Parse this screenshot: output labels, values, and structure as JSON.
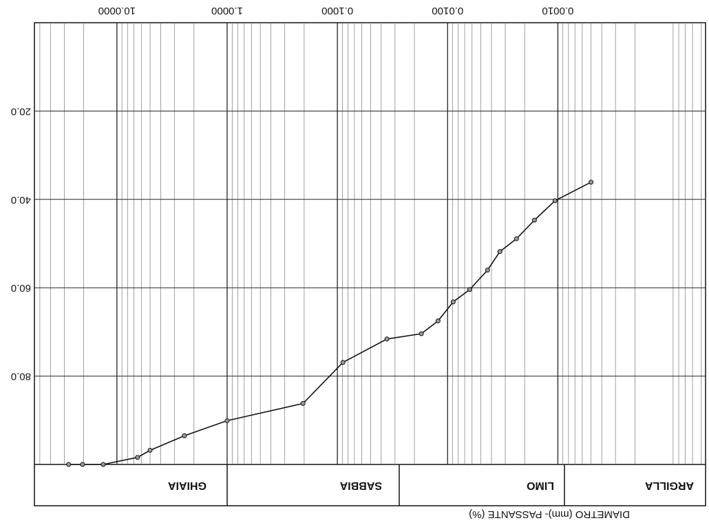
{
  "chart_data": {
    "type": "line",
    "x_label": "DIAMETRO (mm)- PASSANTE (%)",
    "x_log": true,
    "minor_grid": true,
    "grid": true,
    "color": "#111111",
    "zones": [
      "ARGILLA",
      "LIMO",
      "SABBIA",
      "GHIAIA"
    ],
    "xlim": [
      4.57e-05,
      56
    ],
    "xticks": [
      {
        "value": 0.001,
        "label": "0.0010"
      },
      {
        "value": 0.01,
        "label": "0.0100"
      },
      {
        "value": 0.1,
        "label": "0.1000"
      },
      {
        "value": 1,
        "label": "1.0000"
      },
      {
        "value": 10,
        "label": "10.0000"
      }
    ],
    "ylim": [
      0,
      100
    ],
    "yticks": [
      {
        "value": 20,
        "label": "20.0"
      },
      {
        "value": 40,
        "label": "40.0"
      },
      {
        "value": 60,
        "label": "60.0"
      },
      {
        "value": 80,
        "label": "80.0"
      }
    ],
    "x": [
      27.4,
      20.5,
      13.3,
      6.5,
      5.0,
      2.44,
      1.0,
      0.205,
      0.089,
      0.0355,
      0.0173,
      0.0122,
      0.0089,
      0.0063,
      0.00434,
      0.00335,
      0.00237,
      0.00163,
      0.00106,
      0.0005
    ],
    "values": [
      100,
      100,
      100,
      98.4,
      96.8,
      93.5,
      90.1,
      86.2,
      76.9,
      71.6,
      70.4,
      67.5,
      63.2,
      60.4,
      56.0,
      51.8,
      48.9,
      44.7,
      40.3,
      36.1
    ]
  }
}
